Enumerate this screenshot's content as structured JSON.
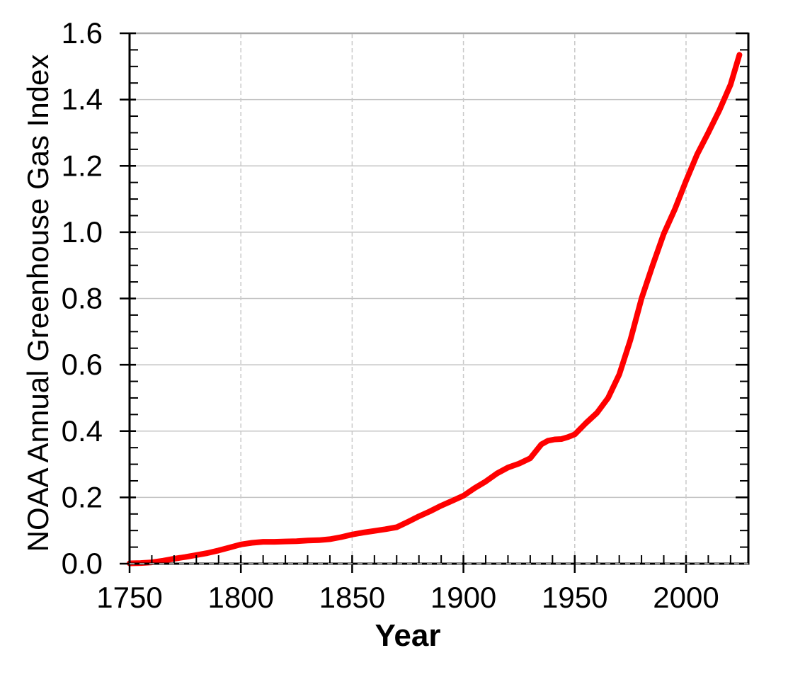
{
  "figure": {
    "background": "#ffffff"
  },
  "chart_data": {
    "type": "line",
    "title": "",
    "xlabel": "Year",
    "ylabel": "NOAA Annual Greenhouse Gas Index",
    "xlim": [
      1750,
      2028
    ],
    "ylim": [
      0,
      1.6
    ],
    "x_major_ticks": [
      {
        "v": 1750,
        "label": "1750"
      },
      {
        "v": 1800,
        "label": "1800"
      },
      {
        "v": 1850,
        "label": "1850"
      },
      {
        "v": 1900,
        "label": "1900"
      },
      {
        "v": 1950,
        "label": "1950"
      },
      {
        "v": 2000,
        "label": "2000"
      }
    ],
    "x_minor_step": 10,
    "y_major_ticks": [
      {
        "v": 0.0,
        "label": "0.0"
      },
      {
        "v": 0.2,
        "label": "0.2"
      },
      {
        "v": 0.4,
        "label": "0.4"
      },
      {
        "v": 0.6,
        "label": "0.6"
      },
      {
        "v": 0.8,
        "label": "0.8"
      },
      {
        "v": 1.0,
        "label": "1.0"
      },
      {
        "v": 1.2,
        "label": "1.2"
      },
      {
        "v": 1.4,
        "label": "1.4"
      },
      {
        "v": 1.6,
        "label": "1.6"
      }
    ],
    "y_minor_step": 0.05,
    "grid": {
      "show": true,
      "h_color": "#c4c4c4",
      "v_color": "#c9c9c9",
      "top_border_color": "#a8a8a8",
      "axis_dash_color": "#c8c8c8"
    },
    "axis_color": "#000000",
    "legend": {
      "show": false
    },
    "series": [
      {
        "color": "#ff0000",
        "width": 8,
        "points": [
          [
            1750,
            0.001
          ],
          [
            1755,
            0.002
          ],
          [
            1760,
            0.004
          ],
          [
            1765,
            0.009
          ],
          [
            1770,
            0.015
          ],
          [
            1775,
            0.02
          ],
          [
            1780,
            0.026
          ],
          [
            1785,
            0.032
          ],
          [
            1790,
            0.04
          ],
          [
            1795,
            0.049
          ],
          [
            1800,
            0.058
          ],
          [
            1805,
            0.063
          ],
          [
            1810,
            0.066
          ],
          [
            1815,
            0.066
          ],
          [
            1820,
            0.067
          ],
          [
            1825,
            0.068
          ],
          [
            1830,
            0.07
          ],
          [
            1835,
            0.071
          ],
          [
            1840,
            0.074
          ],
          [
            1845,
            0.08
          ],
          [
            1850,
            0.088
          ],
          [
            1855,
            0.094
          ],
          [
            1860,
            0.099
          ],
          [
            1865,
            0.104
          ],
          [
            1870,
            0.11
          ],
          [
            1875,
            0.126
          ],
          [
            1880,
            0.143
          ],
          [
            1885,
            0.158
          ],
          [
            1890,
            0.175
          ],
          [
            1895,
            0.19
          ],
          [
            1900,
            0.205
          ],
          [
            1905,
            0.228
          ],
          [
            1910,
            0.248
          ],
          [
            1915,
            0.272
          ],
          [
            1920,
            0.29
          ],
          [
            1925,
            0.302
          ],
          [
            1930,
            0.318
          ],
          [
            1935,
            0.36
          ],
          [
            1938,
            0.371
          ],
          [
            1941,
            0.375
          ],
          [
            1944,
            0.376
          ],
          [
            1947,
            0.382
          ],
          [
            1950,
            0.39
          ],
          [
            1955,
            0.424
          ],
          [
            1960,
            0.455
          ],
          [
            1965,
            0.5
          ],
          [
            1970,
            0.571
          ],
          [
            1975,
            0.675
          ],
          [
            1980,
            0.8
          ],
          [
            1985,
            0.9
          ],
          [
            1990,
            0.995
          ],
          [
            1995,
            1.07
          ],
          [
            2000,
            1.155
          ],
          [
            2005,
            1.235
          ],
          [
            2010,
            1.3
          ],
          [
            2015,
            1.368
          ],
          [
            2020,
            1.445
          ],
          [
            2024,
            1.535
          ]
        ]
      }
    ]
  }
}
